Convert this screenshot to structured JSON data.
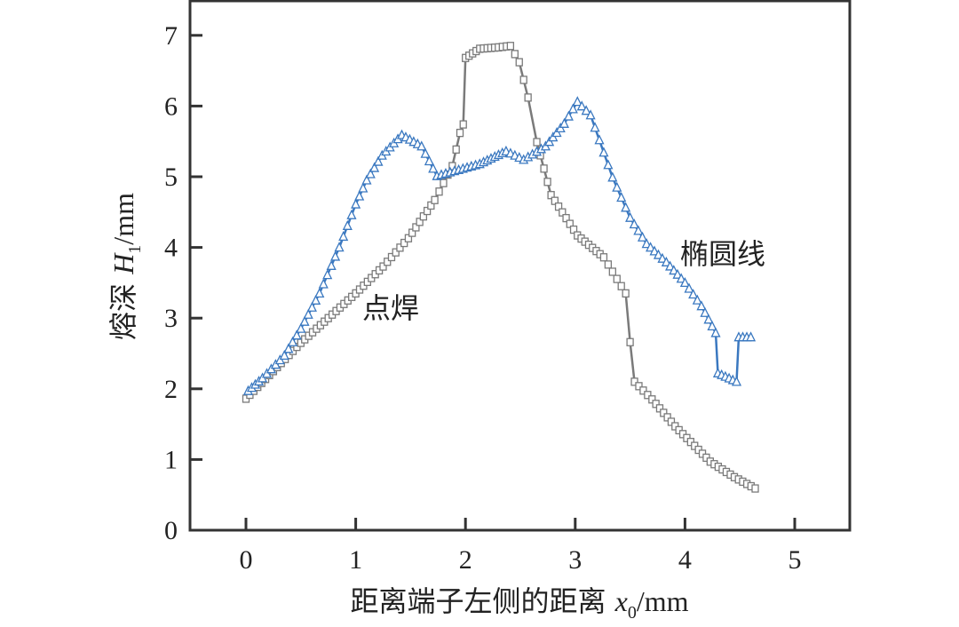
{
  "chart_data": {
    "type": "line",
    "title": "",
    "xlabel": "距离端子左侧的距离 x0/mm",
    "ylabel": "熔深 H1/mm",
    "xlim": [
      -0.5,
      5.5
    ],
    "ylim": [
      0,
      7.5
    ],
    "xticks": [
      0,
      1,
      2,
      3,
      4,
      5
    ],
    "yticks": [
      0,
      1,
      2,
      3,
      4,
      5,
      6,
      7
    ],
    "grid": false,
    "legend": "none (inline annotations)",
    "series": [
      {
        "name": "点焊",
        "color": "#7a7a7a",
        "marker": "square",
        "x": [
          0,
          0.25,
          0.5,
          0.75,
          1.0,
          1.25,
          1.48,
          1.72,
          1.88,
          1.95,
          1.98,
          2.0,
          2.13,
          2.3,
          2.41,
          2.49,
          2.57,
          2.65,
          2.78,
          3.02,
          3.26,
          3.46,
          3.5,
          3.54,
          3.7,
          3.91,
          4.23,
          4.45,
          4.64
        ],
        "y": [
          1.86,
          2.25,
          2.65,
          3.0,
          3.35,
          3.73,
          4.13,
          4.67,
          5.15,
          5.62,
          5.74,
          6.68,
          6.81,
          6.83,
          6.85,
          6.62,
          6.12,
          5.49,
          4.74,
          4.17,
          3.86,
          3.35,
          2.66,
          2.1,
          1.85,
          1.47,
          0.97,
          0.75,
          0.59
        ]
      },
      {
        "name": "椭圆线",
        "color": "#3a78c0",
        "marker": "triangle",
        "x": [
          0.02,
          0.15,
          0.35,
          0.5,
          0.67,
          0.85,
          1.0,
          1.1,
          1.24,
          1.42,
          1.6,
          1.74,
          1.9,
          2.13,
          2.37,
          2.53,
          2.73,
          2.9,
          3.02,
          3.14,
          3.34,
          3.5,
          3.65,
          3.83,
          4.0,
          4.15,
          4.28,
          4.3,
          4.47,
          4.49,
          4.6
        ],
        "y": [
          1.97,
          2.15,
          2.47,
          2.85,
          3.35,
          4.0,
          4.61,
          4.95,
          5.3,
          5.59,
          5.43,
          5.01,
          5.08,
          5.18,
          5.36,
          5.24,
          5.43,
          5.75,
          6.06,
          5.87,
          4.99,
          4.42,
          4.05,
          3.79,
          3.5,
          3.17,
          2.79,
          2.22,
          2.1,
          2.73,
          2.73
        ]
      }
    ],
    "annotations": [
      {
        "text": "点焊",
        "x": 1.4,
        "y": 3.1
      },
      {
        "text": "椭圆线",
        "x": 4.0,
        "y": 3.95
      }
    ]
  },
  "labels": {
    "x_axis_prefix": "距离端子左侧的距离 ",
    "x_axis_var": "x",
    "x_axis_sub": "0",
    "x_axis_unit": "/mm",
    "y_axis_prefix": "熔深 ",
    "y_axis_var": "H",
    "y_axis_sub": "1",
    "y_axis_unit": "/mm",
    "spot_weld": "点焊",
    "ellipse": "椭圆线"
  }
}
